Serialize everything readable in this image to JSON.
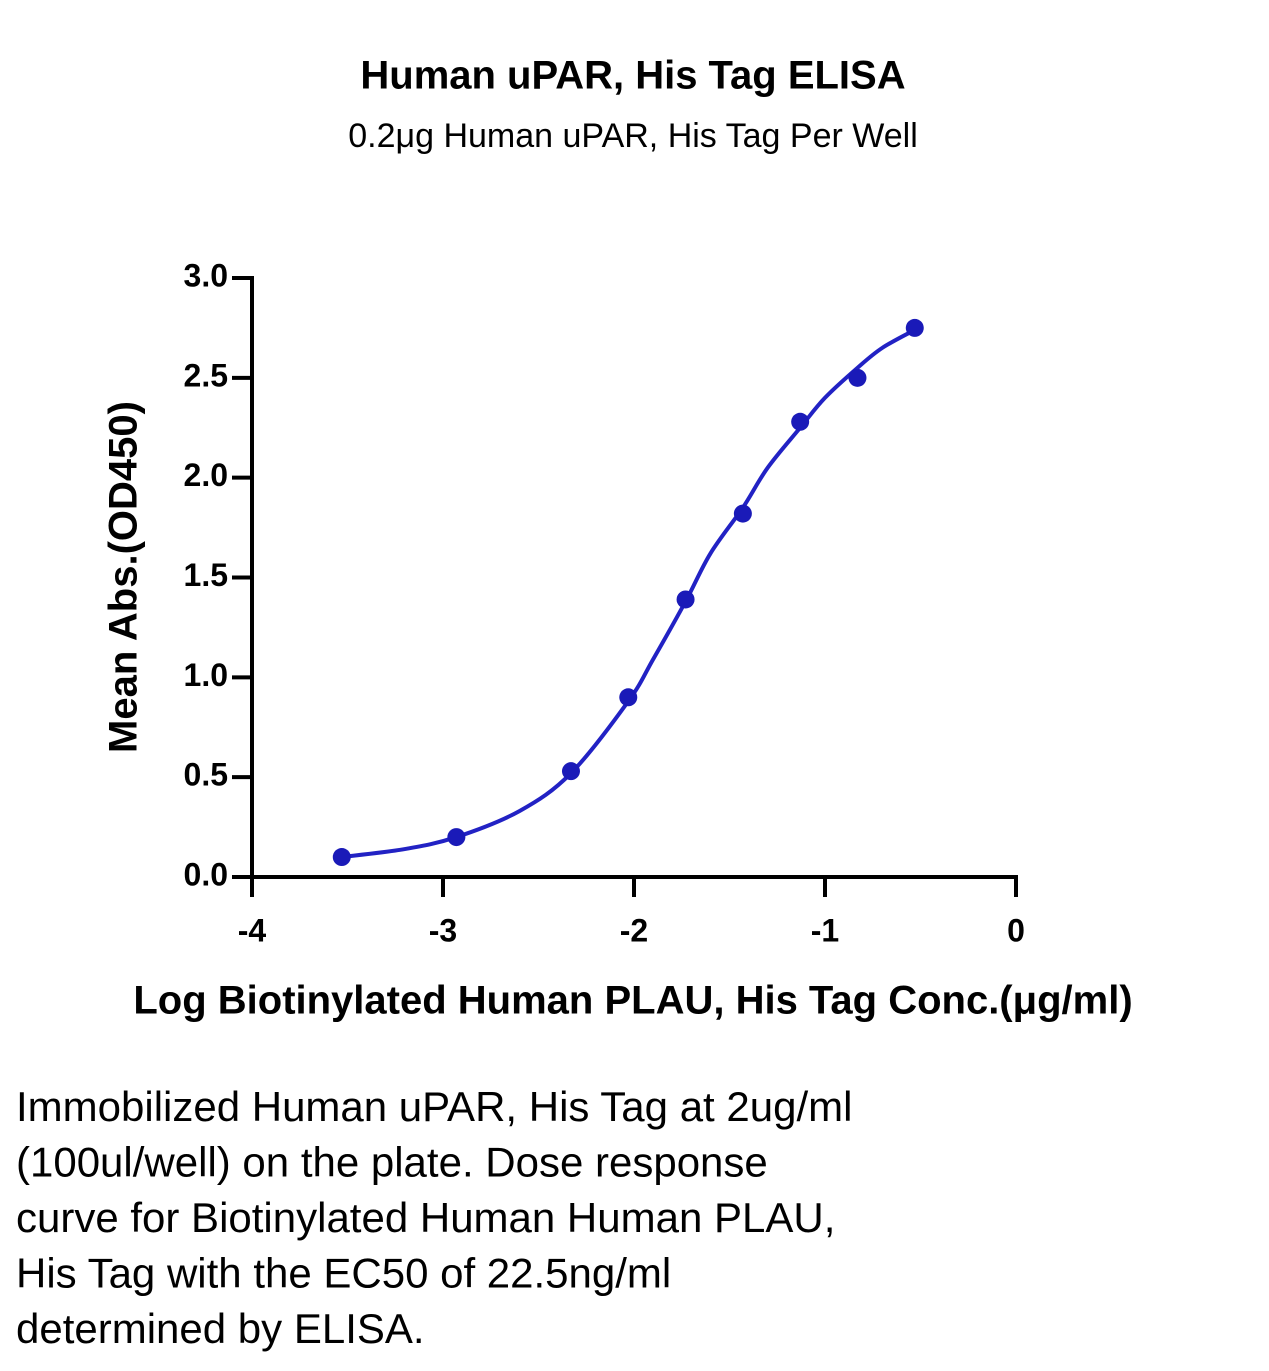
{
  "chart_data": {
    "type": "scatter",
    "title": "Human uPAR, His Tag ELISA",
    "subtitle": "0.2μg Human uPAR, His Tag Per Well",
    "xlabel": "Log Biotinylated Human PLAU, His Tag Conc.(μg/ml)",
    "ylabel": "Mean Abs.(OD450)",
    "x": [
      -3.53,
      -2.93,
      -2.33,
      -2.03,
      -1.73,
      -1.43,
      -1.13,
      -0.83,
      -0.53
    ],
    "values": [
      0.1,
      0.2,
      0.53,
      0.9,
      1.39,
      1.82,
      2.28,
      2.5,
      2.75
    ],
    "color": "#1a1ab8",
    "curve": {
      "x": [
        -3.53,
        -3.2,
        -2.93,
        -2.6,
        -2.33,
        -2.03,
        -1.9,
        -1.73,
        -1.6,
        -1.43,
        -1.3,
        -1.13,
        -1.0,
        -0.83,
        -0.7,
        -0.53
      ],
      "values": [
        0.1,
        0.14,
        0.2,
        0.33,
        0.52,
        0.88,
        1.09,
        1.38,
        1.62,
        1.85,
        2.05,
        2.25,
        2.4,
        2.55,
        2.65,
        2.74
      ],
      "color": "#2222c4"
    },
    "xlim": [
      -4,
      0
    ],
    "xticks": [
      -4,
      -3,
      -2,
      -1,
      0
    ],
    "ylim": [
      0,
      3
    ],
    "yticks": [
      {
        "value": 0,
        "label": "0.0"
      },
      0.5,
      {
        "value": 1,
        "label": "1.0"
      },
      1.5,
      {
        "value": 2,
        "label": "2.0"
      },
      2.5,
      {
        "value": 3,
        "label": "3.0"
      }
    ]
  },
  "caption": [
    "Immobilized Human uPAR, His Tag at 2ug/ml",
    "(100ul/well) on the plate. Dose response",
    "curve for Biotinylated Human Human PLAU,",
    "His Tag with the EC50 of 22.5ng/ml",
    "determined by ELISA."
  ]
}
